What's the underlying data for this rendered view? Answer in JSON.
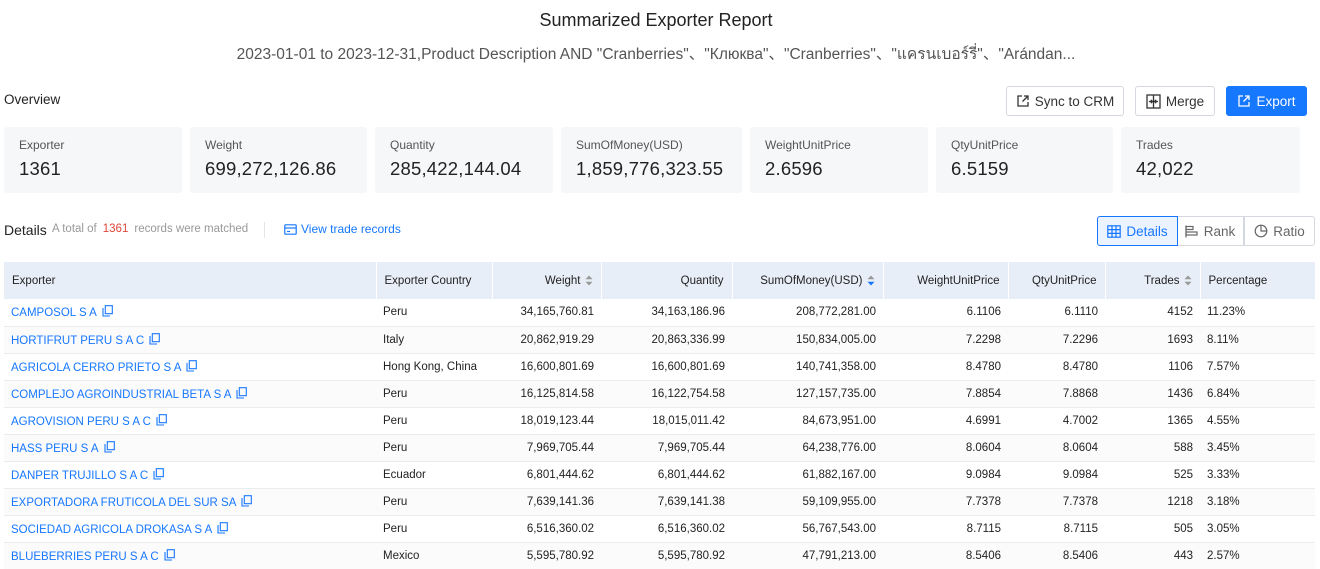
{
  "header": {
    "title": "Summarized Exporter Report",
    "subtitle": "2023-01-01 to 2023-12-31,Product Description AND \"Cranberries\"、\"Клюква\"、\"Cranberries\"、\"แครนเบอร์รี่\"、\"Arándan..."
  },
  "overview": {
    "label": "Overview"
  },
  "toolbar": {
    "sync_label": "Sync to CRM",
    "merge_label": "Merge",
    "export_label": "Export"
  },
  "stats": [
    {
      "label": "Exporter",
      "value": "1361"
    },
    {
      "label": "Weight",
      "value": "699,272,126.86"
    },
    {
      "label": "Quantity",
      "value": "285,422,144.04"
    },
    {
      "label": "SumOfMoney(USD)",
      "value": "1,859,776,323.55"
    },
    {
      "label": "WeightUnitPrice",
      "value": "2.6596"
    },
    {
      "label": "QtyUnitPrice",
      "value": "6.5159"
    },
    {
      "label": "Trades",
      "value": "42,022"
    }
  ],
  "details": {
    "label": "Details",
    "total_prefix": "A total of",
    "total_count": "1361",
    "total_suffix": "records were matched",
    "view_link": "View trade records",
    "views": {
      "details": "Details",
      "rank": "Rank",
      "ratio": "Ratio"
    }
  },
  "table": {
    "columns": [
      "Exporter",
      "Exporter Country",
      "Weight",
      "Quantity",
      "SumOfMoney(USD)",
      "WeightUnitPrice",
      "QtyUnitPrice",
      "Trades",
      "Percentage"
    ],
    "rows": [
      [
        "CAMPOSOL S A",
        "Peru",
        "34,165,760.81",
        "34,163,186.96",
        "208,772,281.00",
        "6.1106",
        "6.1110",
        "4152",
        "11.23%"
      ],
      [
        "HORTIFRUT PERU S A C",
        "Italy",
        "20,862,919.29",
        "20,863,336.99",
        "150,834,005.00",
        "7.2298",
        "7.2296",
        "1693",
        "8.11%"
      ],
      [
        "AGRICOLA CERRO PRIETO S A",
        "Hong Kong, China",
        "16,600,801.69",
        "16,600,801.69",
        "140,741,358.00",
        "8.4780",
        "8.4780",
        "1106",
        "7.57%"
      ],
      [
        "COMPLEJO AGROINDUSTRIAL BETA S A",
        "Peru",
        "16,125,814.58",
        "16,122,754.58",
        "127,157,735.00",
        "7.8854",
        "7.8868",
        "1436",
        "6.84%"
      ],
      [
        "AGROVISION PERU S A C",
        "Peru",
        "18,019,123.44",
        "18,015,011.42",
        "84,673,951.00",
        "4.6991",
        "4.7002",
        "1365",
        "4.55%"
      ],
      [
        "HASS PERU S A",
        "Peru",
        "7,969,705.44",
        "7,969,705.44",
        "64,238,776.00",
        "8.0604",
        "8.0604",
        "588",
        "3.45%"
      ],
      [
        "DANPER TRUJILLO S A C",
        "Ecuador",
        "6,801,444.62",
        "6,801,444.62",
        "61,882,167.00",
        "9.0984",
        "9.0984",
        "525",
        "3.33%"
      ],
      [
        "EXPORTADORA FRUTICOLA DEL SUR SA",
        "Peru",
        "7,639,141.36",
        "7,639,141.38",
        "59,109,955.00",
        "7.7378",
        "7.7378",
        "1218",
        "3.18%"
      ],
      [
        "SOCIEDAD AGRICOLA DROKASA S A",
        "Peru",
        "6,516,360.02",
        "6,516,360.02",
        "56,767,543.00",
        "8.7115",
        "8.7115",
        "505",
        "3.05%"
      ],
      [
        "BLUEBERRIES PERU S A C",
        "Mexico",
        "5,595,780.92",
        "5,595,780.92",
        "47,791,213.00",
        "8.5406",
        "8.5406",
        "443",
        "2.57%"
      ]
    ]
  },
  "colors": {
    "accent": "#1677ff",
    "count_highlight": "#e0463a",
    "header_bg": "#e8eef8"
  }
}
